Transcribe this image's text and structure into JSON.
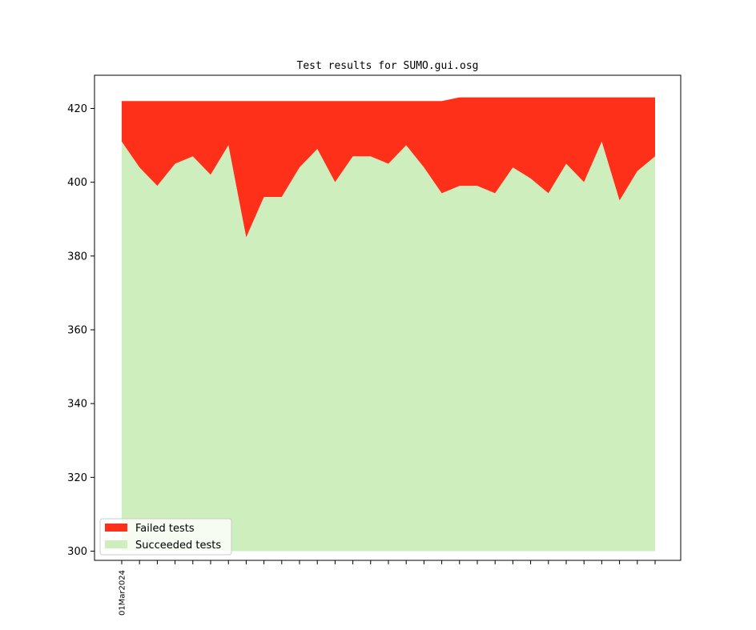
{
  "chart_data": {
    "type": "area",
    "title": "Test results for SUMO.gui.osg",
    "xlabel": "",
    "ylabel": "",
    "ylim": [
      297.5,
      429
    ],
    "yticks": [
      300,
      320,
      340,
      360,
      380,
      400,
      420
    ],
    "x_tick_labels": [
      "01Mar2024",
      "",
      "",
      "",
      "",
      "",
      "",
      "",
      "",
      "",
      "",
      "",
      "",
      "",
      "",
      "",
      "",
      "",
      "",
      "",
      "",
      "",
      "",
      "",
      "",
      "",
      "",
      "",
      "",
      "",
      ""
    ],
    "legend": {
      "placement": "lower-left",
      "entries": [
        {
          "label": "Failed tests",
          "color": "#ff3019"
        },
        {
          "label": "Succeeded tests",
          "color": "#cfeebe"
        }
      ]
    },
    "baseline": 300,
    "series": [
      {
        "name": "Succeeded tests",
        "color": "#cfeebe",
        "values": [
          411,
          404,
          399,
          405,
          407,
          402,
          410,
          385,
          396,
          396,
          404,
          409,
          400,
          407,
          407,
          405,
          410,
          404,
          397,
          399,
          399,
          397,
          404,
          401,
          397,
          405,
          400,
          411,
          395,
          403,
          407
        ]
      },
      {
        "name": "Failed tests",
        "color": "#ff3019",
        "totals": [
          422,
          422,
          422,
          422,
          422,
          422,
          422,
          422,
          422,
          422,
          422,
          422,
          422,
          422,
          422,
          422,
          422,
          422,
          422,
          423,
          423,
          423,
          423,
          423,
          423,
          423,
          423,
          423,
          423,
          423,
          423
        ]
      }
    ]
  }
}
